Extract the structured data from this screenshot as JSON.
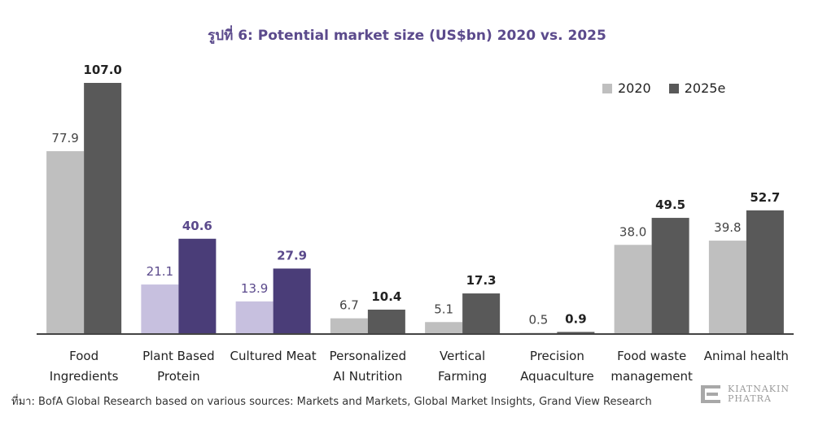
{
  "chart_data": {
    "type": "bar",
    "title": "รูปที่ 6: Potential market size (US$bn) 2020 vs. 2025",
    "categories": [
      [
        "Food",
        "Ingredients"
      ],
      [
        "Plant Based",
        "Protein"
      ],
      [
        "Cultured Meat"
      ],
      [
        "Personalized",
        "AI Nutrition"
      ],
      [
        "Vertical",
        "Farming"
      ],
      [
        "Precision",
        "Aquaculture"
      ],
      [
        "Food waste",
        "management"
      ],
      [
        "Animal health"
      ]
    ],
    "series": [
      {
        "name": "2020",
        "values": [
          77.9,
          21.1,
          13.9,
          6.7,
          5.1,
          0.5,
          38.0,
          39.8
        ],
        "labels": [
          "77.9",
          "21.1",
          "13.9",
          "6.7",
          "5.1",
          "0.5",
          "38.0",
          "39.8"
        ],
        "color": "#bfbfbf",
        "highlight_color": "#c7c0df"
      },
      {
        "name": "2025e",
        "values": [
          107.0,
          40.6,
          27.9,
          10.4,
          17.3,
          0.9,
          49.5,
          52.7
        ],
        "labels": [
          "107.0",
          "40.6",
          "27.9",
          "10.4",
          "17.3",
          "0.9",
          "49.5",
          "52.7"
        ],
        "color": "#595959",
        "highlight_color": "#4a3d78"
      }
    ],
    "highlight_categories": [
      1,
      2
    ],
    "ylim": [
      0,
      110
    ],
    "grid": false,
    "legend": "top-right",
    "title_color": "#5b4a8c",
    "highlight_label_color": "#5b4a8c"
  },
  "source": "ที่มา: BofA Global Research based on various sources: Markets and Markets, Global Market Insights, Grand View Research",
  "logo": {
    "lines": [
      "KIATNAKIN",
      "PHATRA"
    ],
    "icon": "kkp-logo-icon"
  }
}
